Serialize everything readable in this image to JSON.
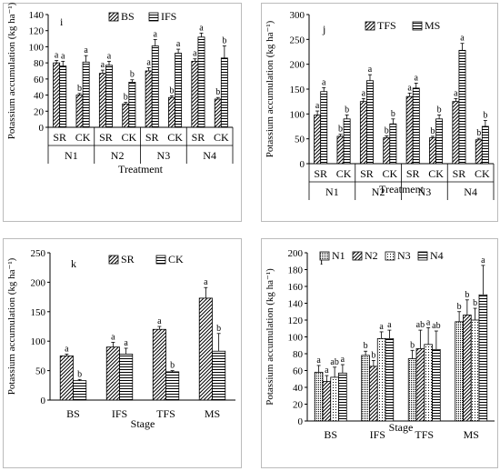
{
  "chart_data": [
    {
      "panel": "i",
      "type": "bar",
      "ylabel": "Potassium accumulation (kg ha⁻¹)",
      "xlabel": "Treatment",
      "ylim": [
        0,
        140
      ],
      "yticks": [
        0,
        20,
        40,
        60,
        80,
        100,
        120,
        140
      ],
      "legend_position": "top",
      "categories": [
        "SR",
        "CK",
        "SR",
        "CK",
        "SR",
        "CK",
        "SR",
        "CK"
      ],
      "groups": [
        "N1",
        "N2",
        "N3",
        "N4"
      ],
      "series": [
        {
          "name": "BS",
          "pattern": "diag",
          "values": [
            80,
            40,
            67,
            29,
            70,
            37,
            82,
            35
          ],
          "errors": [
            3,
            2,
            4,
            2,
            4,
            2,
            3,
            2
          ],
          "letters": [
            "a",
            "b",
            "a",
            "b",
            "a",
            "b",
            "a",
            "b"
          ]
        },
        {
          "name": "IFS",
          "pattern": "hline",
          "values": [
            76,
            81,
            77,
            56,
            101,
            92,
            112,
            86
          ],
          "errors": [
            6,
            8,
            5,
            3,
            8,
            5,
            5,
            15
          ],
          "letters": [
            "a",
            "a",
            "a",
            "b",
            "a",
            "a",
            "a",
            "b"
          ]
        }
      ]
    },
    {
      "panel": "j",
      "type": "bar",
      "ylabel": "Potassium accumulation (kg ha⁻¹)",
      "xlabel": "Treatment",
      "ylim": [
        0,
        300
      ],
      "yticks": [
        0,
        50,
        100,
        150,
        200,
        250,
        300
      ],
      "legend_position": "top",
      "categories": [
        "SR",
        "CK",
        "SR",
        "CK",
        "SR",
        "CK",
        "SR",
        "CK"
      ],
      "groups": [
        "N1",
        "N2",
        "N3",
        "N4"
      ],
      "series": [
        {
          "name": "TFS",
          "pattern": "diag",
          "values": [
            98,
            55,
            125,
            52,
            135,
            52,
            125,
            48
          ],
          "errors": [
            8,
            4,
            6,
            4,
            7,
            3,
            6,
            3
          ],
          "letters": [
            "a",
            "b",
            "a",
            "b",
            "a",
            "b",
            "a",
            "b"
          ]
        },
        {
          "name": "MS",
          "pattern": "hline",
          "values": [
            145,
            90,
            167,
            80,
            152,
            90,
            228,
            75
          ],
          "errors": [
            8,
            8,
            12,
            10,
            10,
            8,
            14,
            12
          ],
          "letters": [
            "a",
            "b",
            "a",
            "b",
            "a",
            "b",
            "a",
            "b"
          ]
        }
      ]
    },
    {
      "panel": "k",
      "type": "bar",
      "ylabel": "Potassium accumulation (kg ha⁻¹)",
      "xlabel": "Stage",
      "ylim": [
        0,
        250
      ],
      "yticks": [
        0,
        50,
        100,
        150,
        200,
        250
      ],
      "legend_position": "top",
      "categories": [
        "BS",
        "IFS",
        "TFS",
        "MS"
      ],
      "series": [
        {
          "name": "SR",
          "pattern": "diag",
          "values": [
            75,
            90,
            120,
            173
          ],
          "errors": [
            3,
            8,
            5,
            18
          ],
          "letters": [
            "a",
            "a",
            "a",
            "a"
          ]
        },
        {
          "name": "CK",
          "pattern": "hline",
          "values": [
            33,
            78,
            48,
            83
          ],
          "errors": [
            2,
            10,
            2,
            30
          ],
          "letters": [
            "b",
            "a",
            "b",
            "b"
          ]
        }
      ]
    },
    {
      "panel": "l",
      "type": "bar",
      "ylabel": "Potassium accumulation (kg ha⁻¹)",
      "xlabel": "Stage",
      "ylim": [
        0,
        200
      ],
      "yticks": [
        0,
        20,
        40,
        60,
        80,
        100,
        120,
        140,
        160,
        180,
        200
      ],
      "legend_position": "top",
      "categories": [
        "BS",
        "IFS",
        "TFS",
        "MS"
      ],
      "series": [
        {
          "name": "N1",
          "pattern": "dots-dense",
          "values": [
            58,
            78,
            74,
            118
          ],
          "errors": [
            8,
            5,
            10,
            12
          ],
          "letters": [
            "a",
            "b",
            "b",
            "b"
          ]
        },
        {
          "name": "N2",
          "pattern": "diag",
          "values": [
            47,
            65,
            86,
            126
          ],
          "errors": [
            7,
            7,
            22,
            18
          ],
          "letters": [
            "a",
            "b",
            "ab",
            "b"
          ]
        },
        {
          "name": "N3",
          "pattern": "dots-sparse",
          "values": [
            52,
            98,
            91,
            120
          ],
          "errors": [
            12,
            8,
            20,
            14
          ],
          "letters": [
            "ab",
            "a",
            "a",
            "b"
          ]
        },
        {
          "name": "N4",
          "pattern": "hline",
          "values": [
            57,
            98,
            85,
            150
          ],
          "errors": [
            10,
            10,
            22,
            35
          ],
          "letters": [
            "a",
            "a",
            "ab",
            "a"
          ]
        }
      ]
    }
  ]
}
